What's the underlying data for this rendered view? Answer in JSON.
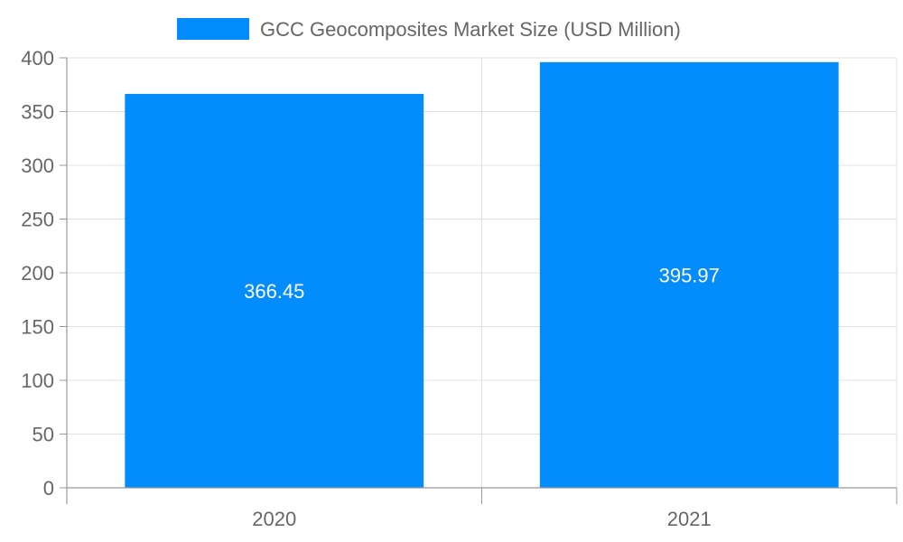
{
  "chart_data": {
    "type": "bar",
    "categories": [
      "2020",
      "2021"
    ],
    "series": [
      {
        "name": "GCC Geocomposites Market Size (USD Million)",
        "values": [
          366.45,
          395.97
        ],
        "color": "#038cfc"
      }
    ],
    "data_labels": [
      "366.45",
      "395.97"
    ],
    "ylim": [
      0,
      400
    ],
    "yticks": [
      0,
      50,
      100,
      150,
      200,
      250,
      300,
      350,
      400
    ],
    "ytick_labels": [
      "0",
      "50",
      "100",
      "150",
      "200",
      "250",
      "300",
      "350",
      "400"
    ],
    "grid": true,
    "legend_position": "top",
    "title": "",
    "xlabel": "",
    "ylabel": ""
  }
}
